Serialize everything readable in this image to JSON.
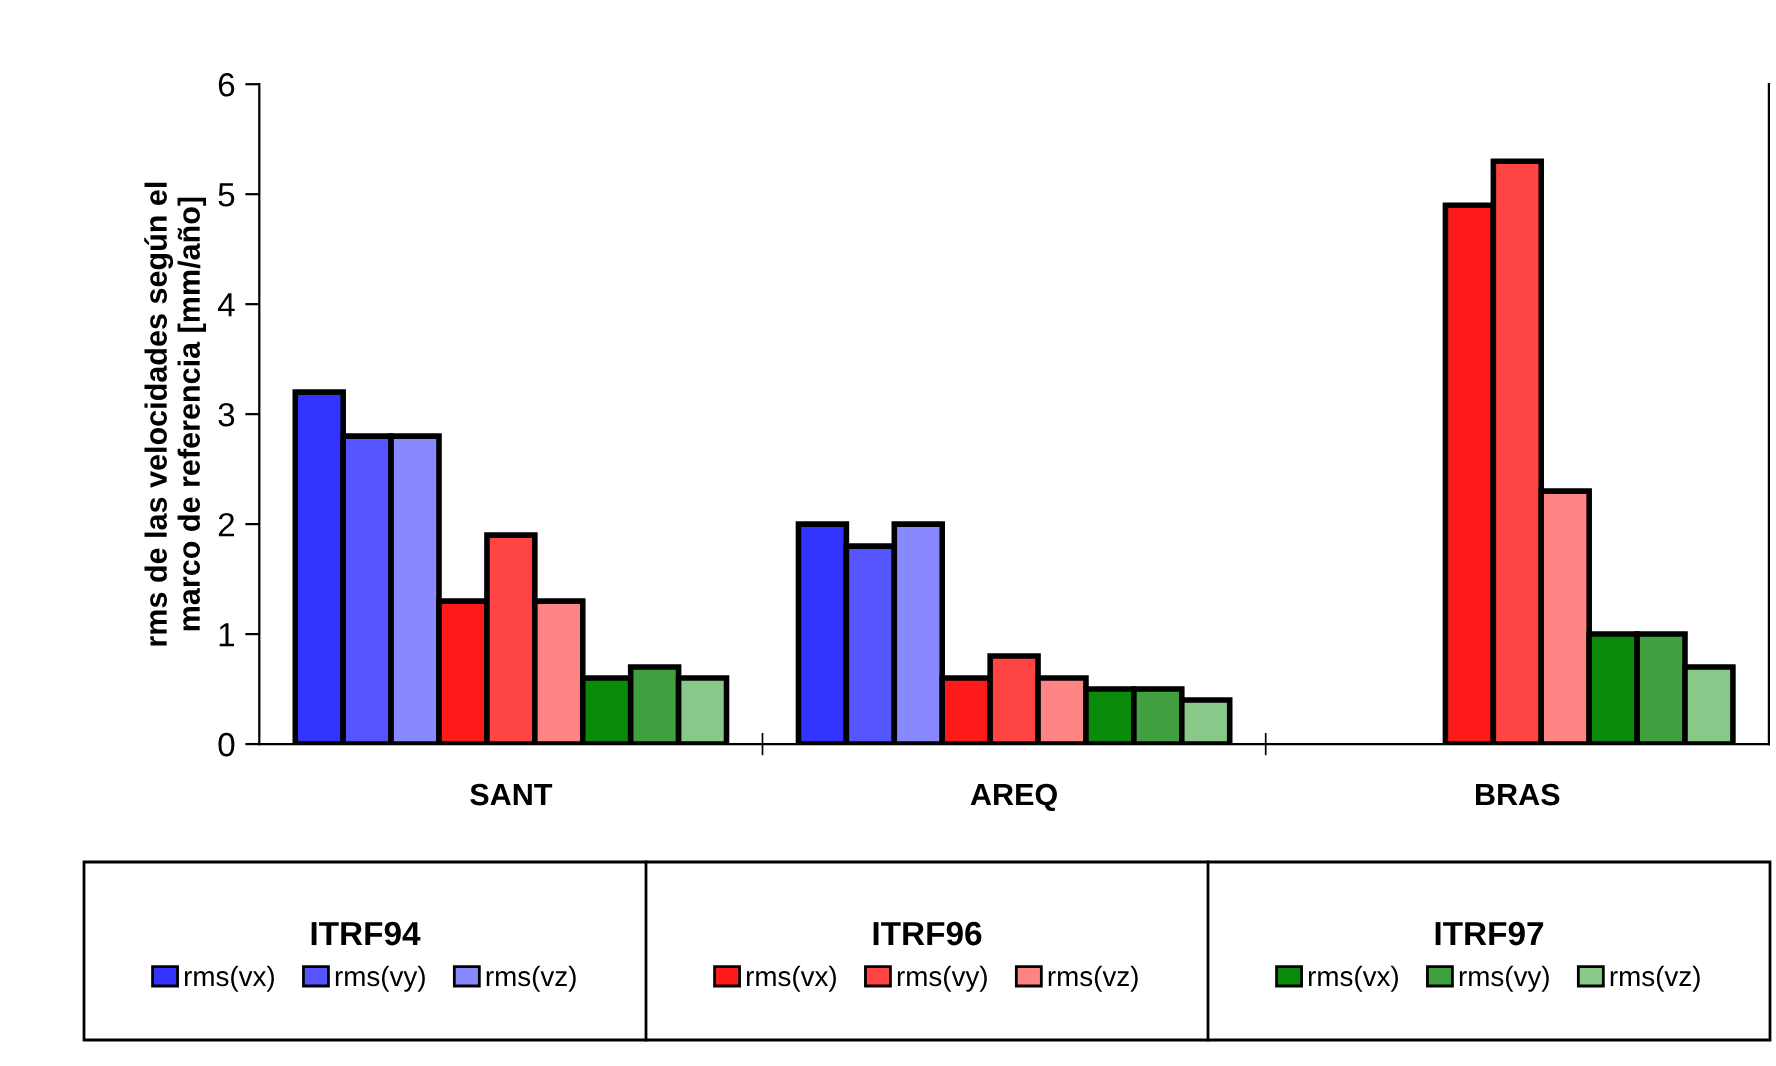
{
  "chart_data": {
    "type": "bar",
    "ylabel": "rms de las velocidades según el\nmarco de referencia [mm/año]",
    "categories": [
      "SANT",
      "AREQ",
      "BRAS"
    ],
    "series": [
      {
        "name": "rms(vx)",
        "color": "#3333ff",
        "values": [
          3.2,
          2.0,
          null
        ]
      },
      {
        "name": "rms(vy)",
        "color": "#5555ff",
        "values": [
          2.8,
          1.8,
          null
        ]
      },
      {
        "name": "rms(vz)",
        "color": "#8888ff",
        "values": [
          2.8,
          2.0,
          null
        ]
      },
      {
        "name": "rms(vx)",
        "color": "#ff1a1a",
        "values": [
          1.3,
          0.6,
          4.9
        ]
      },
      {
        "name": "rms(vy)",
        "color": "#ff4444",
        "values": [
          1.9,
          0.8,
          5.3
        ]
      },
      {
        "name": "rms(vz)",
        "color": "#ff8585",
        "values": [
          1.3,
          0.6,
          2.3
        ]
      },
      {
        "name": "rms(vx)",
        "color": "#0a8a0a",
        "values": [
          0.6,
          0.5,
          1.0
        ]
      },
      {
        "name": "rms(vy)",
        "color": "#40a040",
        "values": [
          0.7,
          0.5,
          1.0
        ]
      },
      {
        "name": "rms(vz)",
        "color": "#88c888",
        "values": [
          0.6,
          0.4,
          0.7
        ]
      }
    ],
    "annotations": [
      "ITRF94",
      "ITRF96",
      "ITRF97"
    ],
    "ylim": [
      0,
      6
    ],
    "yticks": [
      0,
      1,
      2,
      3,
      4,
      5,
      6
    ],
    "grid": false,
    "legend": "bottom"
  }
}
